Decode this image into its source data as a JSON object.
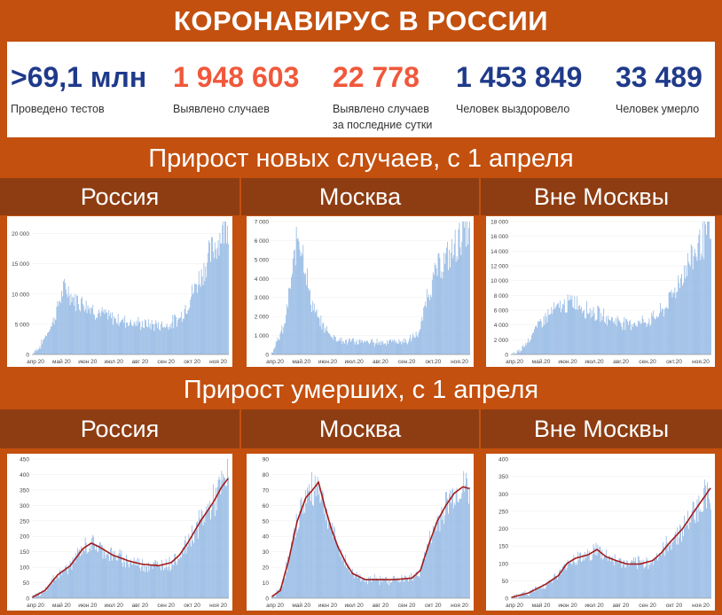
{
  "header": {
    "title": "КОРОНАВИРУС В РОССИИ"
  },
  "stats": [
    {
      "value": ">69,1 млн",
      "label": "Проведено тестов",
      "color": "#1f3a8a"
    },
    {
      "value": "1 948 603",
      "label": "Выявлено случаев",
      "color": "#f0583b"
    },
    {
      "value": "22 778",
      "label": "Выявлено случаев",
      "label2": "за последние сутки",
      "color": "#f0583b"
    },
    {
      "value": "1 453 849",
      "label": "Человек выздоровело",
      "color": "#1f3a8a"
    },
    {
      "value": "33 489",
      "label": "Человек умерло",
      "color": "#1f3a8a"
    }
  ],
  "sections": {
    "cases": "Прирост новых случаев, с 1 апреля",
    "deaths": "Прирост умерших, с 1 апреля"
  },
  "columns": [
    "Россия",
    "Москва",
    "Вне Москвы"
  ],
  "colors": {
    "bar": "#8db4e2",
    "line": "#a31a1a",
    "band_dark": "#8e3d12",
    "band_orange": "#c3500f"
  },
  "chart_data": [
    {
      "id": "cases-russia",
      "type": "bar",
      "xlabels": [
        "апр 20",
        "май 20",
        "июн 20",
        "июл 20",
        "авг 20",
        "сен 20",
        "окт 20",
        "ноя 20"
      ],
      "ylim": [
        0,
        22000
      ],
      "yticks": [
        0,
        5000,
        10000,
        15000,
        20000
      ],
      "yticklabels": [
        "0",
        "5 000",
        "10 000",
        "15 000",
        "20 000"
      ],
      "keypoints": [
        [
          0,
          0
        ],
        [
          10,
          1500
        ],
        [
          25,
          5500
        ],
        [
          35,
          10000
        ],
        [
          40,
          11000
        ],
        [
          50,
          9000
        ],
        [
          60,
          8800
        ],
        [
          75,
          7200
        ],
        [
          95,
          6000
        ],
        [
          130,
          5000
        ],
        [
          160,
          4800
        ],
        [
          175,
          6000
        ],
        [
          185,
          8500
        ],
        [
          200,
          13000
        ],
        [
          215,
          17500
        ],
        [
          225,
          20000
        ],
        [
          230,
          22500
        ]
      ],
      "smooth": false
    },
    {
      "id": "cases-moscow",
      "type": "bar",
      "xlabels": [
        "апр.20",
        "май.20",
        "июн.20",
        "июл.20",
        "авг.20",
        "сен.20",
        "окт.20",
        "ноя.20"
      ],
      "ylim": [
        0,
        7000
      ],
      "yticks": [
        0,
        1000,
        2000,
        3000,
        4000,
        5000,
        6000,
        7000
      ],
      "yticklabels": [
        "0",
        "1 000",
        "2 000",
        "3 000",
        "4 000",
        "5 000",
        "6 000",
        "7 000"
      ],
      "keypoints": [
        [
          0,
          100
        ],
        [
          15,
          1500
        ],
        [
          25,
          4500
        ],
        [
          31,
          6500
        ],
        [
          37,
          5500
        ],
        [
          45,
          3000
        ],
        [
          55,
          1800
        ],
        [
          70,
          1000
        ],
        [
          85,
          700
        ],
        [
          120,
          650
        ],
        [
          160,
          700
        ],
        [
          175,
          1200
        ],
        [
          182,
          3000
        ],
        [
          195,
          4500
        ],
        [
          210,
          5200
        ],
        [
          220,
          6000
        ],
        [
          228,
          6700
        ]
      ],
      "smooth": false
    },
    {
      "id": "cases-outside",
      "type": "bar",
      "xlabels": [
        "апр.20",
        "май.20",
        "июн.20",
        "июл.20",
        "авг.20",
        "сен.20",
        "окт.20",
        "ноя.20"
      ],
      "ylim": [
        0,
        18000
      ],
      "yticks": [
        0,
        2000,
        4000,
        6000,
        8000,
        10000,
        12000,
        14000,
        16000,
        18000
      ],
      "yticklabels": [
        "0",
        "2 000",
        "4 000",
        "6 000",
        "8 000",
        "10 000",
        "12 000",
        "14 000",
        "16 000",
        "18 000"
      ],
      "keypoints": [
        [
          0,
          0
        ],
        [
          10,
          500
        ],
        [
          20,
          2000
        ],
        [
          35,
          4500
        ],
        [
          50,
          6000
        ],
        [
          65,
          6800
        ],
        [
          75,
          7200
        ],
        [
          85,
          6300
        ],
        [
          110,
          5000
        ],
        [
          135,
          4200
        ],
        [
          160,
          4500
        ],
        [
          178,
          6000
        ],
        [
          190,
          8500
        ],
        [
          205,
          12000
        ],
        [
          220,
          15000
        ],
        [
          230,
          16500
        ]
      ],
      "smooth": false
    },
    {
      "id": "deaths-russia",
      "type": "bar",
      "xlabels": [
        "апр 20",
        "май 20",
        "июн 20",
        "июл 20",
        "авг 20",
        "сен 20",
        "окт 20",
        "ноя 20"
      ],
      "ylim": [
        0,
        450
      ],
      "yticks": [
        0,
        50,
        100,
        150,
        200,
        250,
        300,
        350,
        400,
        450
      ],
      "yticklabels": [
        "0",
        "50",
        "100",
        "150",
        "200",
        "250",
        "300",
        "350",
        "400",
        "450"
      ],
      "keypoints": [
        [
          0,
          3
        ],
        [
          15,
          25
        ],
        [
          30,
          75
        ],
        [
          45,
          105
        ],
        [
          60,
          160
        ],
        [
          70,
          178
        ],
        [
          80,
          165
        ],
        [
          95,
          140
        ],
        [
          105,
          130
        ],
        [
          115,
          120
        ],
        [
          130,
          110
        ],
        [
          150,
          105
        ],
        [
          165,
          115
        ],
        [
          175,
          140
        ],
        [
          185,
          180
        ],
        [
          200,
          250
        ],
        [
          215,
          310
        ],
        [
          225,
          360
        ],
        [
          232,
          385
        ]
      ],
      "smooth": true
    },
    {
      "id": "deaths-moscow",
      "type": "bar",
      "xlabels": [
        "апр 20",
        "май 20",
        "июн 20",
        "июл 20",
        "авг 20",
        "сен 20",
        "окт 20",
        "ноя 20"
      ],
      "ylim": [
        0,
        90
      ],
      "yticks": [
        0,
        10,
        20,
        30,
        40,
        50,
        60,
        70,
        80,
        90
      ],
      "yticklabels": [
        "0",
        "10",
        "20",
        "30",
        "40",
        "50",
        "60",
        "70",
        "80",
        "90"
      ],
      "keypoints": [
        [
          0,
          1
        ],
        [
          10,
          5
        ],
        [
          20,
          25
        ],
        [
          30,
          50
        ],
        [
          40,
          65
        ],
        [
          48,
          70
        ],
        [
          55,
          75
        ],
        [
          62,
          60
        ],
        [
          70,
          45
        ],
        [
          78,
          33
        ],
        [
          88,
          22
        ],
        [
          95,
          16
        ],
        [
          110,
          12
        ],
        [
          125,
          12
        ],
        [
          145,
          12
        ],
        [
          165,
          13
        ],
        [
          175,
          18
        ],
        [
          185,
          35
        ],
        [
          195,
          50
        ],
        [
          205,
          60
        ],
        [
          215,
          68
        ],
        [
          225,
          72
        ],
        [
          232,
          71
        ]
      ],
      "smooth": true
    },
    {
      "id": "deaths-outside",
      "type": "bar",
      "xlabels": [
        "апр 20",
        "май 20",
        "июн 20",
        "июл 20",
        "авг 20",
        "сен 20",
        "окт 20",
        "ноя 20"
      ],
      "ylim": [
        0,
        400
      ],
      "yticks": [
        0,
        50,
        100,
        150,
        200,
        250,
        300,
        350,
        400
      ],
      "yticklabels": [
        "0",
        "50",
        "100",
        "150",
        "200",
        "250",
        "300",
        "350",
        "400"
      ],
      "keypoints": [
        [
          0,
          2
        ],
        [
          20,
          15
        ],
        [
          40,
          40
        ],
        [
          55,
          65
        ],
        [
          65,
          100
        ],
        [
          75,
          115
        ],
        [
          90,
          125
        ],
        [
          100,
          140
        ],
        [
          110,
          120
        ],
        [
          120,
          110
        ],
        [
          135,
          98
        ],
        [
          150,
          98
        ],
        [
          165,
          108
        ],
        [
          175,
          130
        ],
        [
          185,
          160
        ],
        [
          200,
          200
        ],
        [
          215,
          255
        ],
        [
          225,
          290
        ],
        [
          232,
          315
        ]
      ],
      "smooth": true
    }
  ]
}
